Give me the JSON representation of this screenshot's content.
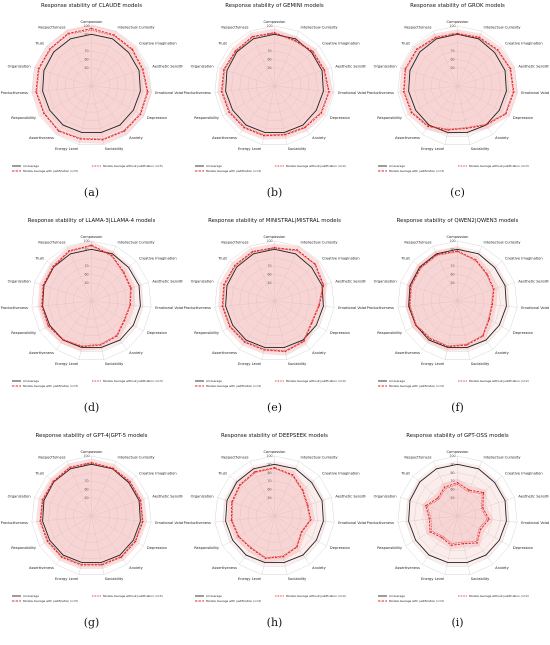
{
  "chart_data": [
    {
      "type": "radar",
      "panel_label": "(a)",
      "title": "Response stability of CLAUDE models",
      "radial_ticks": [
        "100",
        "90",
        "70",
        "60",
        "50"
      ],
      "radial_range": [
        40,
        100
      ],
      "axes": [
        "Compassion",
        "Intellectual Curiosity",
        "Creative Imagination",
        "Aesthetic Sensitivity",
        "Emotional Volatility",
        "Depression",
        "Anxiety",
        "Sociability",
        "Energy Level",
        "Assertiveness",
        "Responsibility",
        "Productiveness",
        "Organization",
        "Trust",
        "Respectfulness"
      ],
      "series": [
        {
          "name": "All Average",
          "values": [
            90,
            90,
            88,
            88,
            87,
            86,
            86,
            85,
            85,
            86,
            86,
            87,
            88,
            89,
            90
          ]
        },
        {
          "name": "Models Average with justification (n=5)",
          "values": [
            97,
            95,
            94,
            93,
            96,
            96,
            95,
            94,
            93,
            95,
            94,
            95,
            95,
            95,
            97
          ]
        },
        {
          "name": "Models Average without justification (n=5)",
          "values": [
            95,
            94,
            93,
            92,
            95,
            95,
            94,
            93,
            92,
            94,
            93,
            94,
            94,
            94,
            96
          ]
        }
      ],
      "legend": [
        "All Average",
        "Models Average with justification (n=5)",
        "Models Average without justification (n=5)"
      ]
    },
    {
      "type": "radar",
      "panel_label": "(b)",
      "title": "Response stability of GEMINI models",
      "radial_ticks": [
        "100",
        "90",
        "70",
        "60",
        "50"
      ],
      "radial_range": [
        40,
        100
      ],
      "axes": [
        "Compassion",
        "Intellectual Curiosity",
        "Creative Imagination",
        "Aesthetic Sensitivity",
        "Emotional Volatility",
        "Depression",
        "Anxiety",
        "Sociability",
        "Energy Level",
        "Assertiveness",
        "Responsibility",
        "Productiveness",
        "Organization",
        "Trust",
        "Respectfulness"
      ],
      "series": [
        {
          "name": "All Average",
          "values": [
            90,
            90,
            88,
            88,
            87,
            86,
            86,
            85,
            85,
            86,
            86,
            87,
            88,
            89,
            90
          ]
        },
        {
          "name": "Models Average with justification (n=4)",
          "values": [
            92,
            88,
            90,
            91,
            94,
            93,
            90,
            88,
            89,
            90,
            91,
            92,
            92,
            91,
            93
          ]
        },
        {
          "name": "Models Average without justification (n=4)",
          "values": [
            91,
            87,
            89,
            90,
            93,
            92,
            89,
            87,
            88,
            89,
            90,
            91,
            91,
            90,
            92
          ]
        }
      ],
      "legend": [
        "All Average",
        "Models Average with justification (n=4)",
        "Models Average without justification (n=4)"
      ]
    },
    {
      "type": "radar",
      "panel_label": "(c)",
      "title": "Response stability of GROK models",
      "radial_ticks": [
        "100",
        "90",
        "70",
        "60",
        "50"
      ],
      "radial_range": [
        40,
        100
      ],
      "axes": [
        "Compassion",
        "Intellectual Curiosity",
        "Creative Imagination",
        "Aesthetic Sensitivity",
        "Emotional Volatility",
        "Depression",
        "Anxiety",
        "Sociability",
        "Energy Level",
        "Assertiveness",
        "Responsibility",
        "Productiveness",
        "Organization",
        "Trust",
        "Respectfulness"
      ],
      "series": [
        {
          "name": "All Average",
          "values": [
            90,
            90,
            88,
            88,
            87,
            86,
            86,
            85,
            85,
            86,
            86,
            87,
            88,
            89,
            90
          ]
        },
        {
          "name": "Models Average with justification (n=3)",
          "values": [
            91,
            92,
            93,
            95,
            96,
            95,
            86,
            80,
            82,
            88,
            92,
            93,
            94,
            94,
            92
          ]
        },
        {
          "name": "Models Average without justification (n=3)",
          "values": [
            90,
            91,
            92,
            94,
            95,
            94,
            85,
            79,
            81,
            87,
            91,
            92,
            93,
            93,
            91
          ]
        }
      ],
      "legend": [
        "All Average",
        "Models Average with justification (n=3)",
        "Models Average without justification (n=3)"
      ]
    },
    {
      "type": "radar",
      "panel_label": "(d)",
      "title": "Response stability of LLAMA-3|LLAMA-4 models",
      "radial_ticks": [
        "100",
        "90",
        "70",
        "60",
        "50"
      ],
      "radial_range": [
        40,
        100
      ],
      "axes": [
        "Compassion",
        "Intellectual Curiosity",
        "Creative Imagination",
        "Aesthetic Sensitivity",
        "Emotional Volatility",
        "Depression",
        "Anxiety",
        "Sociability",
        "Energy Level",
        "Assertiveness",
        "Responsibility",
        "Productiveness",
        "Organization",
        "Trust",
        "Respectfulness"
      ],
      "series": [
        {
          "name": "All Average",
          "values": [
            90,
            90,
            88,
            88,
            87,
            86,
            86,
            85,
            85,
            86,
            86,
            87,
            88,
            89,
            90
          ]
        },
        {
          "name": "Models Average with justification (n=3)",
          "values": [
            95,
            88,
            80,
            78,
            75,
            74,
            80,
            82,
            84,
            86,
            88,
            88,
            89,
            90,
            94
          ]
        },
        {
          "name": "Models Average without justification (n=3)",
          "values": [
            94,
            87,
            79,
            77,
            74,
            73,
            79,
            81,
            83,
            85,
            87,
            87,
            88,
            89,
            93
          ]
        }
      ],
      "legend": [
        "All Average",
        "Models Average with justification (n=3)",
        "Models Average without justification (n=3)"
      ]
    },
    {
      "type": "radar",
      "panel_label": "(e)",
      "title": "Response stability of MINISTRAL|MISTRAL models",
      "radial_ticks": [
        "100",
        "90",
        "70",
        "60",
        "50"
      ],
      "radial_range": [
        40,
        100
      ],
      "axes": [
        "Compassion",
        "Intellectual Curiosity",
        "Creative Imagination",
        "Aesthetic Sensitivity",
        "Emotional Volatility",
        "Depression",
        "Anxiety",
        "Sociability",
        "Energy Level",
        "Assertiveness",
        "Responsibility",
        "Productiveness",
        "Organization",
        "Trust",
        "Respectfulness"
      ],
      "series": [
        {
          "name": "All Average",
          "values": [
            90,
            90,
            88,
            88,
            87,
            86,
            86,
            85,
            85,
            86,
            86,
            87,
            88,
            89,
            90
          ]
        },
        {
          "name": "Models Average with justification (n=4)",
          "values": [
            92,
            95,
            94,
            90,
            82,
            80,
            88,
            90,
            88,
            89,
            90,
            91,
            92,
            92,
            93
          ]
        },
        {
          "name": "Models Average without justification (n=4)",
          "values": [
            91,
            94,
            93,
            89,
            81,
            79,
            87,
            89,
            87,
            88,
            89,
            90,
            91,
            91,
            92
          ]
        }
      ],
      "legend": [
        "All Average",
        "Models Average with justification (n=4)",
        "Models Average without justification (n=4)"
      ]
    },
    {
      "type": "radar",
      "panel_label": "(f)",
      "title": "Response stability of QWEN2|QWEN3 models",
      "radial_ticks": [
        "100",
        "90",
        "70",
        "60",
        "50"
      ],
      "radial_range": [
        40,
        100
      ],
      "axes": [
        "Compassion",
        "Intellectual Curiosity",
        "Creative Imagination",
        "Aesthetic Sensitivity",
        "Emotional Volatility",
        "Depression",
        "Anxiety",
        "Sociability",
        "Energy Level",
        "Assertiveness",
        "Responsibility",
        "Productiveness",
        "Organization",
        "Trust",
        "Respectfulness"
      ],
      "series": [
        {
          "name": "All Average",
          "values": [
            90,
            90,
            88,
            88,
            87,
            86,
            86,
            85,
            85,
            86,
            86,
            87,
            88,
            89,
            90
          ]
        },
        {
          "name": "Models Average with justification (n=2)",
          "values": [
            88,
            82,
            76,
            74,
            70,
            72,
            80,
            82,
            84,
            84,
            86,
            86,
            87,
            88,
            89
          ]
        },
        {
          "name": "Models Average without justification (n=2)",
          "values": [
            87,
            81,
            75,
            73,
            69,
            71,
            79,
            81,
            83,
            83,
            85,
            85,
            86,
            87,
            88
          ]
        }
      ],
      "legend": [
        "All Average",
        "Models Average with justification (n=2)",
        "Models Average without justification (n=2)"
      ]
    },
    {
      "type": "radar",
      "panel_label": "(g)",
      "title": "Response stability of GPT-4|GPT-5 models",
      "radial_ticks": [
        "100",
        "90",
        "70",
        "60",
        "50"
      ],
      "radial_range": [
        40,
        100
      ],
      "axes": [
        "Compassion",
        "Intellectual Curiosity",
        "Creative Imagination",
        "Aesthetic Sensitivity",
        "Emotional Volatility",
        "Depression",
        "Anxiety",
        "Sociability",
        "Energy Level",
        "Assertiveness",
        "Responsibility",
        "Productiveness",
        "Organization",
        "Trust",
        "Respectfulness"
      ],
      "series": [
        {
          "name": "All Average",
          "values": [
            90,
            90,
            88,
            88,
            87,
            86,
            86,
            85,
            85,
            86,
            86,
            87,
            88,
            89,
            90
          ]
        },
        {
          "name": "Models Average with justification (n=5)",
          "values": [
            92,
            91,
            90,
            90,
            90,
            89,
            89,
            88,
            88,
            89,
            89,
            90,
            90,
            90,
            92
          ]
        },
        {
          "name": "Models Average without justification (n=5)",
          "values": [
            91,
            90,
            89,
            89,
            89,
            88,
            88,
            87,
            87,
            88,
            88,
            89,
            89,
            89,
            91
          ]
        }
      ],
      "legend": [
        "All Average",
        "Models Average with justification (n=5)",
        "Models Average without justification (n=5)"
      ]
    },
    {
      "type": "radar",
      "panel_label": "(h)",
      "title": "Response stability of DEEPSEEK models",
      "radial_ticks": [
        "100",
        "90",
        "80",
        "70",
        "60",
        "50"
      ],
      "radial_range": [
        40,
        100
      ],
      "axes": [
        "Compassion",
        "Intellectual Curiosity",
        "Creative Imagination",
        "Aesthetic Sensitivity",
        "Emotional Volatility",
        "Depression",
        "Anxiety",
        "Sociability",
        "Energy Level",
        "Assertiveness",
        "Responsibility",
        "Productiveness",
        "Organization",
        "Trust",
        "Respectfulness"
      ],
      "series": [
        {
          "name": "All Average",
          "values": [
            90,
            90,
            88,
            88,
            87,
            86,
            86,
            85,
            85,
            86,
            86,
            87,
            88,
            89,
            90
          ]
        },
        {
          "name": "Models Average with justification (n=4)",
          "values": [
            86,
            82,
            74,
            70,
            72,
            66,
            74,
            78,
            80,
            76,
            78,
            80,
            82,
            84,
            86
          ]
        },
        {
          "name": "Models Average without justification (n=4)",
          "values": [
            85,
            81,
            73,
            69,
            71,
            65,
            73,
            77,
            79,
            75,
            77,
            79,
            81,
            83,
            85
          ]
        }
      ],
      "legend": [
        "All Average",
        "Models Average with justification (n=4)",
        "Models Average without justification (n=4)"
      ]
    },
    {
      "type": "radar",
      "panel_label": "(i)",
      "title": "Response stability of GPT-OSS models",
      "radial_ticks": [
        "100",
        "90",
        "80",
        "70",
        "60",
        "50"
      ],
      "radial_range": [
        40,
        100
      ],
      "axes": [
        "Compassion",
        "Intellectual Curiosity",
        "Creative Imagination",
        "Aesthetic Sensitivity",
        "Emotional Volatility",
        "Depression",
        "Anxiety",
        "Sociability",
        "Energy Level",
        "Assertiveness",
        "Responsibility",
        "Productiveness",
        "Organization",
        "Trust",
        "Respectfulness"
      ],
      "series": [
        {
          "name": "All Average",
          "values": [
            90,
            90,
            88,
            88,
            87,
            86,
            86,
            85,
            85,
            86,
            86,
            87,
            88,
            89,
            90
          ]
        },
        {
          "name": "Models Average with justification (n=2)",
          "values": [
            68,
            62,
            70,
            60,
            66,
            60,
            68,
            62,
            64,
            60,
            66,
            62,
            68,
            60,
            66
          ]
        },
        {
          "name": "Models Average without justification (n=2)",
          "values": [
            66,
            60,
            68,
            58,
            64,
            58,
            66,
            60,
            62,
            58,
            64,
            60,
            66,
            58,
            64
          ]
        }
      ],
      "legend": [
        "All Average",
        "Models Average with justification (n=2)",
        "Models Average without justification (n=2)"
      ]
    }
  ],
  "style": {
    "all_average_color": "#222222",
    "series_color": "#e02020",
    "band_color": "#f2b8b8",
    "grid_color": "#cccccc"
  }
}
